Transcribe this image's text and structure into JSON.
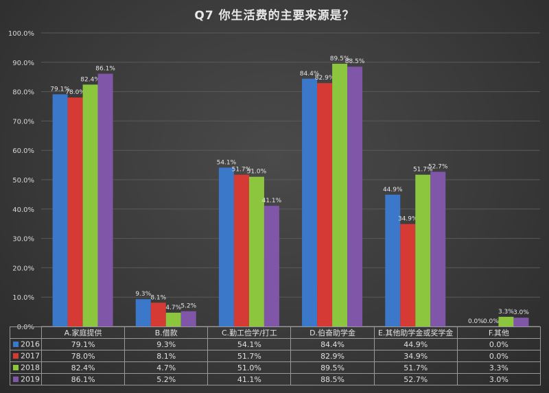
{
  "chart_data": {
    "type": "bar",
    "title": "Q7 你生活费的主要来源是？",
    "categories": [
      "A.家庭提供",
      "B.借款",
      "C.勤工俭学/打工",
      "D.伯奋助学金",
      "E.其他助学金或奖学金",
      "F.其他"
    ],
    "series": [
      {
        "name": "2016",
        "color": "#3b78c9",
        "values": [
          79.1,
          9.3,
          54.1,
          84.4,
          44.9,
          0.0
        ]
      },
      {
        "name": "2017",
        "color": "#d53a34",
        "values": [
          78.0,
          8.1,
          51.7,
          82.9,
          34.9,
          0.0
        ]
      },
      {
        "name": "2018",
        "color": "#8cc63f",
        "values": [
          82.4,
          4.7,
          51.0,
          89.5,
          51.7,
          3.3
        ]
      },
      {
        "name": "2019",
        "color": "#7f56a8",
        "values": [
          86.1,
          5.2,
          41.1,
          88.5,
          52.7,
          3.0
        ]
      }
    ],
    "ylim": [
      0,
      100
    ],
    "yticks": [
      "0.0%",
      "10.0%",
      "20.0%",
      "30.0%",
      "40.0%",
      "50.0%",
      "60.0%",
      "70.0%",
      "80.0%",
      "90.0%",
      "100.0%"
    ],
    "data_labels": [
      [
        "79.1%",
        "9.3%",
        "54.1%",
        "84.4%",
        "44.9%",
        "0.0%"
      ],
      [
        "78.0%",
        "8.1%",
        "51.7%",
        "82.9%",
        "34.9%",
        "0.0%"
      ],
      [
        "82.4%",
        "4.7%",
        "51.0%",
        "89.5%",
        "51.7%",
        "3.3%"
      ],
      [
        "86.1%",
        "5.2%",
        "41.1%",
        "88.5%",
        "52.7%",
        "3.0%"
      ]
    ],
    "grid": true,
    "legend": "table-below"
  }
}
